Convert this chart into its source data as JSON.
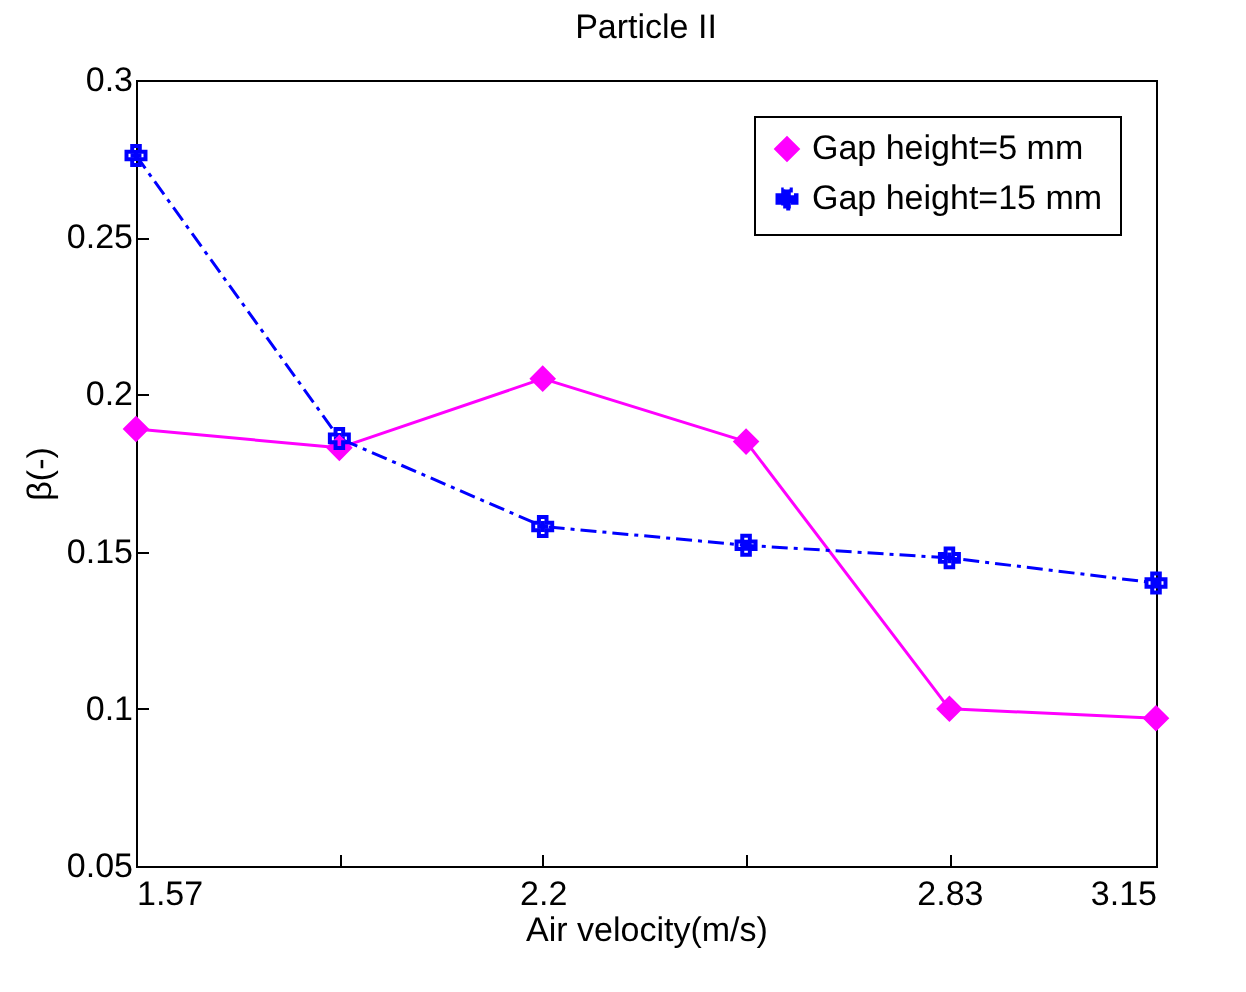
{
  "chart_data": {
    "type": "line",
    "title": "Particle II",
    "xlabel": "Air velocity(m/s)",
    "ylabel": "β(-)",
    "x": [
      1.57,
      1.885,
      2.2,
      2.515,
      2.83,
      3.15
    ],
    "series": [
      {
        "name": "Gap height=5 mm",
        "color": "#ff00ff",
        "marker": "diamond",
        "line_style": "solid",
        "values": [
          0.189,
          0.183,
          0.205,
          0.185,
          0.1,
          0.097
        ]
      },
      {
        "name": "Gap height=15 mm",
        "color": "#0000ff",
        "marker": "cross",
        "line_style": "dashed",
        "values": [
          0.276,
          0.186,
          0.158,
          0.152,
          0.148,
          0.14
        ]
      }
    ],
    "xlim": [
      1.57,
      3.15
    ],
    "xticks": [
      1.57,
      {
        "value": 1.885,
        "label": null
      },
      2.2,
      {
        "value": 2.515,
        "label": null
      },
      2.83,
      3.15
    ],
    "ylim": [
      0.05,
      0.3
    ],
    "yticks": [
      0.05,
      0.1,
      0.15,
      0.2,
      0.25,
      0.3
    ],
    "grid": false,
    "legend": "top right"
  }
}
